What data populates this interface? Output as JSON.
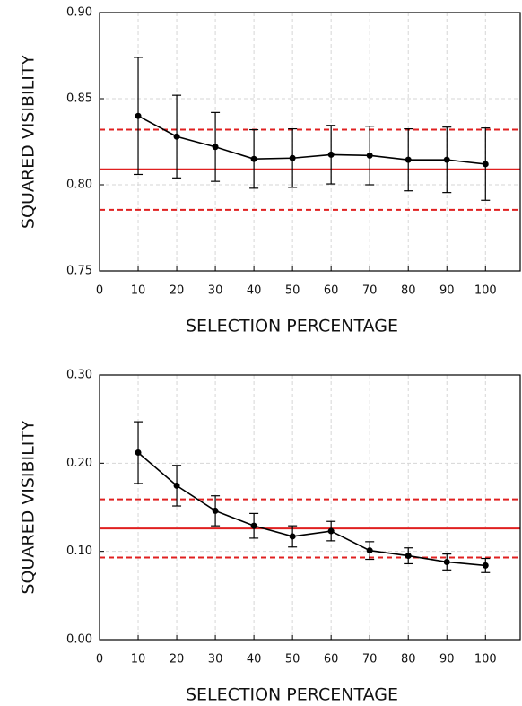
{
  "chart_data": [
    {
      "type": "line",
      "xlabel": "SELECTION PERCENTAGE",
      "ylabel": "SQUARED VISIBILITY",
      "x": [
        10,
        20,
        30,
        40,
        50,
        60,
        70,
        80,
        90,
        100
      ],
      "series": [
        {
          "color": "#000000",
          "values": [
            0.84,
            0.828,
            0.822,
            0.815,
            0.8155,
            0.8175,
            0.817,
            0.8145,
            0.8145,
            0.812
          ],
          "errors": [
            0.034,
            0.024,
            0.02,
            0.017,
            0.017,
            0.017,
            0.017,
            0.018,
            0.019,
            0.021
          ]
        }
      ],
      "hlines": [
        {
          "value": 0.809,
          "style": "solid",
          "color": "#e02020"
        },
        {
          "value": 0.832,
          "style": "dashed",
          "color": "#e02020"
        },
        {
          "value": 0.7855,
          "style": "dashed",
          "color": "#e02020"
        }
      ],
      "xlim": [
        0,
        109
      ],
      "xticks": [
        0,
        10,
        20,
        30,
        40,
        50,
        60,
        70,
        80,
        90,
        100
      ],
      "ylim": [
        0.75,
        0.9
      ],
      "yticks": [
        0.75,
        {
          "value": 0.8,
          "label": "0.80"
        },
        0.85,
        {
          "value": 0.9,
          "label": "0.90"
        }
      ],
      "grid": true
    },
    {
      "type": "line",
      "xlabel": "SELECTION PERCENTAGE",
      "ylabel": "SQUARED VISIBILITY",
      "x": [
        10,
        20,
        30,
        40,
        50,
        60,
        70,
        80,
        90,
        100
      ],
      "series": [
        {
          "color": "#000000",
          "values": [
            0.212,
            0.1745,
            0.146,
            0.129,
            0.117,
            0.123,
            0.101,
            0.095,
            0.088,
            0.084
          ],
          "errors": [
            0.035,
            0.023,
            0.017,
            0.014,
            0.012,
            0.011,
            0.01,
            0.009,
            0.009,
            0.008
          ]
        }
      ],
      "hlines": [
        {
          "value": 0.126,
          "style": "solid",
          "color": "#e02020"
        },
        {
          "value": 0.159,
          "style": "dashed",
          "color": "#e02020"
        },
        {
          "value": 0.093,
          "style": "dashed",
          "color": "#e02020"
        }
      ],
      "xlim": [
        0,
        109
      ],
      "xticks": [
        0,
        10,
        20,
        30,
        40,
        50,
        60,
        70,
        80,
        90,
        100
      ],
      "ylim": [
        0,
        0.3
      ],
      "yticks": [
        {
          "value": 0,
          "label": "0.00"
        },
        {
          "value": 0.1,
          "label": "0.10"
        },
        {
          "value": 0.2,
          "label": "0.20"
        },
        {
          "value": 0.3,
          "label": "0.30"
        }
      ],
      "grid": true
    }
  ]
}
